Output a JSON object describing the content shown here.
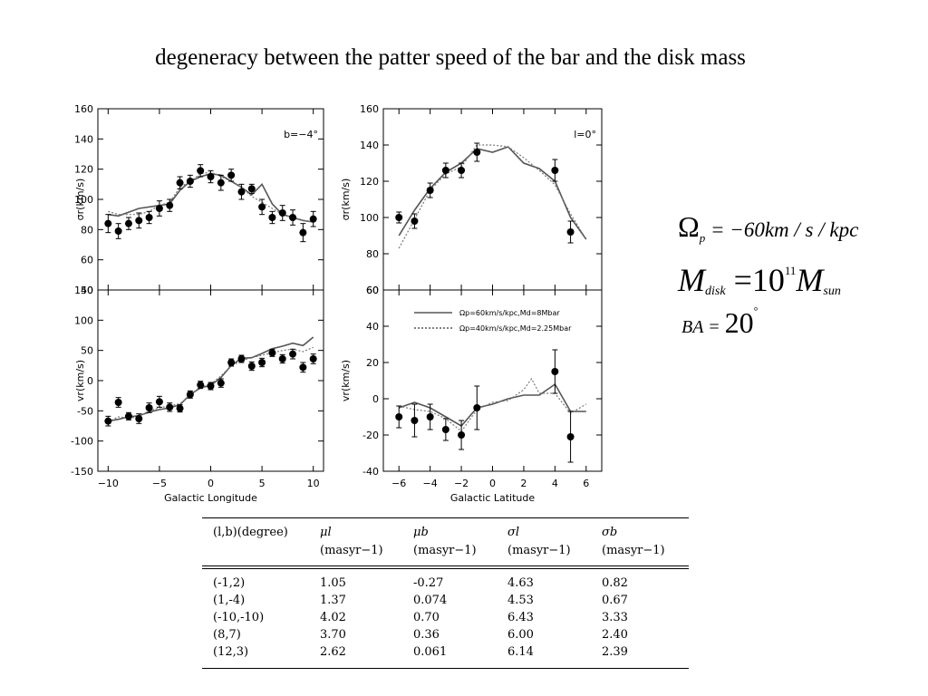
{
  "title": "degeneracy between the patter speed of the bar and the disk mass",
  "chart_data": [
    {
      "type": "scatter",
      "panel": "top-left",
      "annotation": "b=−4°",
      "ylabel": "σr(km/s)",
      "ylim": [
        40,
        160
      ],
      "yticks": [
        40,
        60,
        80,
        100,
        120,
        140,
        160
      ],
      "xlim": [
        -11,
        11
      ],
      "points": [
        {
          "x": -10,
          "y": 84,
          "err": 6
        },
        {
          "x": -9,
          "y": 79,
          "err": 5
        },
        {
          "x": -8,
          "y": 84,
          "err": 4
        },
        {
          "x": -7,
          "y": 86,
          "err": 5
        },
        {
          "x": -6,
          "y": 88,
          "err": 4
        },
        {
          "x": -5,
          "y": 94,
          "err": 5
        },
        {
          "x": -4,
          "y": 96,
          "err": 4
        },
        {
          "x": -3,
          "y": 111,
          "err": 4
        },
        {
          "x": -2,
          "y": 112,
          "err": 4
        },
        {
          "x": -1,
          "y": 119,
          "err": 4
        },
        {
          "x": 0,
          "y": 115,
          "err": 4
        },
        {
          "x": 1,
          "y": 111,
          "err": 5
        },
        {
          "x": 2,
          "y": 116,
          "err": 4
        },
        {
          "x": 3,
          "y": 105,
          "err": 5
        },
        {
          "x": 4,
          "y": 107,
          "err": 3
        },
        {
          "x": 5,
          "y": 95,
          "err": 5
        },
        {
          "x": 6,
          "y": 88,
          "err": 4
        },
        {
          "x": 7,
          "y": 91,
          "err": 5
        },
        {
          "x": 8,
          "y": 88,
          "err": 5
        },
        {
          "x": 9,
          "y": 78,
          "err": 6
        },
        {
          "x": 10,
          "y": 87,
          "err": 5
        }
      ],
      "series": [
        {
          "style": "solid",
          "points": [
            [
              -10,
              90
            ],
            [
              -9,
              89
            ],
            [
              -7,
              94
            ],
            [
              -5,
              96
            ],
            [
              -4,
              97
            ],
            [
              -3,
              106
            ],
            [
              -2,
              112
            ],
            [
              -1,
              115
            ],
            [
              0,
              117
            ],
            [
              1,
              116
            ],
            [
              2,
              112
            ],
            [
              3,
              108
            ],
            [
              4,
              103
            ],
            [
              5,
              110
            ],
            [
              6,
              97
            ],
            [
              7,
              90
            ],
            [
              8,
              88
            ],
            [
              9,
              86
            ],
            [
              10,
              85
            ]
          ]
        },
        {
          "style": "dotted",
          "points": [
            [
              -10,
              92
            ],
            [
              -9,
              90
            ],
            [
              -8,
              90
            ],
            [
              -7,
              90
            ],
            [
              -6,
              92
            ],
            [
              -5,
              96
            ],
            [
              -4,
              98
            ],
            [
              -3,
              108
            ],
            [
              -2,
              112
            ],
            [
              -1,
              117
            ],
            [
              0,
              118
            ],
            [
              1,
              115
            ],
            [
              2,
              112
            ],
            [
              3,
              108
            ],
            [
              4,
              102
            ],
            [
              5,
              98
            ],
            [
              6,
              94
            ],
            [
              7,
              90
            ],
            [
              8,
              88
            ],
            [
              9,
              86
            ],
            [
              10,
              85
            ]
          ]
        }
      ]
    },
    {
      "type": "scatter",
      "panel": "top-right",
      "annotation": "l=0°",
      "ylabel": "σr(km/s)",
      "ylim": [
        60,
        160
      ],
      "yticks": [
        60,
        80,
        100,
        120,
        140,
        160
      ],
      "xlim": [
        -7,
        7
      ],
      "points": [
        {
          "x": -6,
          "y": 100,
          "err": 3
        },
        {
          "x": -5,
          "y": 98,
          "err": 4
        },
        {
          "x": -4,
          "y": 115,
          "err": 4
        },
        {
          "x": -3,
          "y": 126,
          "err": 4
        },
        {
          "x": -2,
          "y": 126,
          "err": 4
        },
        {
          "x": -1,
          "y": 136,
          "err": 5
        },
        {
          "x": 4,
          "y": 126,
          "err": 6
        },
        {
          "x": 5,
          "y": 92,
          "err": 6
        }
      ],
      "series": [
        {
          "style": "solid",
          "points": [
            [
              -6,
              90
            ],
            [
              -5,
              104
            ],
            [
              -4,
              116
            ],
            [
              -3,
              125
            ],
            [
              -2,
              130
            ],
            [
              -1,
              138
            ],
            [
              0,
              136
            ],
            [
              1,
              139
            ],
            [
              2,
              130
            ],
            [
              3,
              127
            ],
            [
              4,
              120
            ],
            [
              5,
              100
            ],
            [
              6,
              88
            ]
          ]
        },
        {
          "style": "dotted",
          "points": [
            [
              -6,
              83
            ],
            [
              -5,
              99
            ],
            [
              -4,
              115
            ],
            [
              -3,
              124
            ],
            [
              -2,
              128
            ],
            [
              -1,
              140
            ],
            [
              0,
              140
            ],
            [
              1,
              139
            ],
            [
              2,
              133
            ],
            [
              3,
              126
            ],
            [
              4,
              118
            ],
            [
              5,
              102
            ],
            [
              6,
              88
            ]
          ]
        }
      ]
    },
    {
      "type": "scatter",
      "panel": "bottom-left",
      "xlabel": "Galactic Longitude",
      "ylabel": "vr(km/s)",
      "ylim": [
        -150,
        150
      ],
      "yticks": [
        -150,
        -100,
        -50,
        0,
        50,
        100,
        150
      ],
      "xlim": [
        -11,
        11
      ],
      "xticks": [
        -10,
        -5,
        0,
        5,
        10
      ],
      "points": [
        {
          "x": -10,
          "y": -67,
          "err": 8
        },
        {
          "x": -9,
          "y": -36,
          "err": 8
        },
        {
          "x": -8,
          "y": -59,
          "err": 6
        },
        {
          "x": -7,
          "y": -63,
          "err": 8
        },
        {
          "x": -6,
          "y": -45,
          "err": 8
        },
        {
          "x": -5,
          "y": -35,
          "err": 9
        },
        {
          "x": -4,
          "y": -44,
          "err": 7
        },
        {
          "x": -3,
          "y": -46,
          "err": 6
        },
        {
          "x": -2,
          "y": -23,
          "err": 6
        },
        {
          "x": -1,
          "y": -7,
          "err": 6
        },
        {
          "x": 0,
          "y": -9,
          "err": 6
        },
        {
          "x": 1,
          "y": -4,
          "err": 7
        },
        {
          "x": 2,
          "y": 30,
          "err": 6
        },
        {
          "x": 3,
          "y": 36,
          "err": 6
        },
        {
          "x": 4,
          "y": 24,
          "err": 7
        },
        {
          "x": 5,
          "y": 30,
          "err": 7
        },
        {
          "x": 6,
          "y": 46,
          "err": 6
        },
        {
          "x": 7,
          "y": 36,
          "err": 7
        },
        {
          "x": 8,
          "y": 44,
          "err": 8
        },
        {
          "x": 9,
          "y": 22,
          "err": 8
        },
        {
          "x": 10,
          "y": 36,
          "err": 8
        }
      ],
      "series": [
        {
          "style": "solid",
          "points": [
            [
              -10,
              -67
            ],
            [
              -9,
              -64
            ],
            [
              -8,
              -60
            ],
            [
              -7,
              -58
            ],
            [
              -6,
              -52
            ],
            [
              -5,
              -48
            ],
            [
              -4,
              -45
            ],
            [
              -3,
              -40
            ],
            [
              -2,
              -23
            ],
            [
              -1,
              -12
            ],
            [
              0,
              -8
            ],
            [
              1,
              5
            ],
            [
              2,
              25
            ],
            [
              3,
              37
            ],
            [
              4,
              38
            ],
            [
              5,
              45
            ],
            [
              6,
              53
            ],
            [
              7,
              57
            ],
            [
              8,
              62
            ],
            [
              9,
              58
            ],
            [
              10,
              72
            ]
          ]
        },
        {
          "style": "dotted",
          "points": [
            [
              -10,
              -68
            ],
            [
              -9,
              -60
            ],
            [
              -8,
              -62
            ],
            [
              -7,
              -60
            ],
            [
              -6,
              -50
            ],
            [
              -5,
              -45
            ],
            [
              -4,
              -42
            ],
            [
              -3,
              -38
            ],
            [
              -2,
              -25
            ],
            [
              -1,
              -10
            ],
            [
              0,
              -6
            ],
            [
              1,
              8
            ],
            [
              2,
              24
            ],
            [
              3,
              33
            ],
            [
              4,
              38
            ],
            [
              5,
              42
            ],
            [
              6,
              46
            ],
            [
              7,
              50
            ],
            [
              8,
              52
            ],
            [
              9,
              48
            ],
            [
              10,
              55
            ]
          ]
        }
      ]
    },
    {
      "type": "scatter",
      "panel": "bottom-right",
      "xlabel": "Galactic Latitude",
      "ylabel": "vr(km/s)",
      "ylim": [
        -40,
        60
      ],
      "yticks": [
        -40,
        -20,
        0,
        20,
        40,
        60
      ],
      "xlim": [
        -7,
        7
      ],
      "xticks": [
        -6,
        -4,
        -2,
        0,
        2,
        4,
        6
      ],
      "legend": [
        {
          "style": "solid",
          "label": "Ωp=60km/s/kpc,Md=8Mbar"
        },
        {
          "style": "dotted",
          "label": "Ωp=40km/s/kpc,Md=2.25Mbar"
        }
      ],
      "points": [
        {
          "x": -6,
          "y": -10,
          "err": 6
        },
        {
          "x": -5,
          "y": -12,
          "err": 9
        },
        {
          "x": -4,
          "y": -10,
          "err": 7
        },
        {
          "x": -3,
          "y": -17,
          "err": 6
        },
        {
          "x": -2,
          "y": -20,
          "err": 8
        },
        {
          "x": -1,
          "y": -5,
          "err": 12
        },
        {
          "x": 4,
          "y": 15,
          "err": 12
        },
        {
          "x": 5,
          "y": -21,
          "err": 14
        }
      ],
      "series": [
        {
          "style": "solid",
          "points": [
            [
              -6,
              -5
            ],
            [
              -5,
              -2
            ],
            [
              -4,
              -5
            ],
            [
              -3,
              -10
            ],
            [
              -2,
              -15
            ],
            [
              -1,
              -5
            ],
            [
              0,
              -3
            ],
            [
              1,
              0
            ],
            [
              2,
              2
            ],
            [
              3,
              2
            ],
            [
              4,
              8
            ],
            [
              5,
              -7
            ],
            [
              6,
              -7
            ]
          ]
        },
        {
          "style": "dotted",
          "points": [
            [
              -6,
              -4
            ],
            [
              -5,
              -6
            ],
            [
              -4,
              -7
            ],
            [
              -3,
              -11
            ],
            [
              -2,
              -18
            ],
            [
              -1,
              -6
            ],
            [
              0,
              -2
            ],
            [
              1,
              -1
            ],
            [
              2,
              5
            ],
            [
              2.5,
              11
            ],
            [
              3,
              3
            ],
            [
              4,
              3
            ],
            [
              5,
              -8
            ],
            [
              6,
              -3
            ]
          ]
        }
      ]
    }
  ],
  "equations": {
    "eq1": {
      "symbol": "Ω",
      "sub": "p",
      "rest": " = −60km / s / kpc"
    },
    "eq2": {
      "symbol": "M",
      "sub": "disk",
      "mid": " =10",
      "sup": "11",
      "symbol2": "M",
      "sub2": "sun"
    },
    "eq3": {
      "text": "BA = ",
      "value": "20",
      "deg": "°"
    }
  },
  "table": {
    "headers": [
      {
        "line1": "(l,b)(degree)",
        "line2": ""
      },
      {
        "line1": "μl",
        "line2": "(masyr−1)"
      },
      {
        "line1": "μb",
        "line2": "(masyr−1)"
      },
      {
        "line1": "σl",
        "line2": "(masyr−1)"
      },
      {
        "line1": "σb",
        "line2": "(masyr−1)"
      }
    ],
    "rows": [
      [
        "(-1,2)",
        "1.05",
        "-0.27",
        "4.63",
        "0.82"
      ],
      [
        "(1,-4)",
        "1.37",
        "0.074",
        "4.53",
        "0.67"
      ],
      [
        "(-10,-10)",
        "4.02",
        "0.70",
        "6.43",
        "3.33"
      ],
      [
        "(8,7)",
        "3.70",
        "0.36",
        "6.00",
        "2.40"
      ],
      [
        "(12,3)",
        "2.62",
        "0.061",
        "6.14",
        "2.39"
      ]
    ]
  }
}
